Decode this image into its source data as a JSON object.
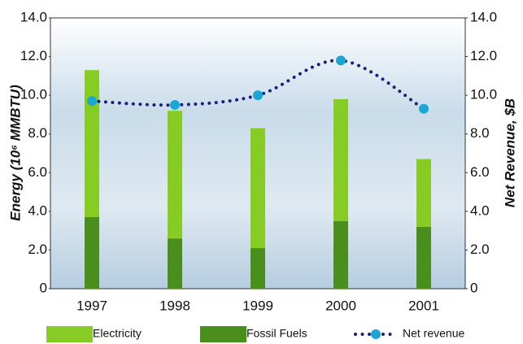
{
  "chart_data": {
    "type": "stacked-bar-line",
    "y_label": "Energy (10⁶ MMBTU)",
    "y2_label": "Net Revenue, $B",
    "categories": [
      "1997",
      "1998",
      "1999",
      "2000",
      "2001"
    ],
    "series": [
      {
        "name": "Fossil Fuels",
        "color": "#4a8f1e",
        "values": [
          3.7,
          2.6,
          2.1,
          3.5,
          3.2
        ]
      },
      {
        "name": "Electricity",
        "color": "#86cc25",
        "values": [
          7.6,
          6.6,
          6.2,
          6.3,
          3.5
        ]
      },
      {
        "name": "Net revenue",
        "color": "#1b1f7a",
        "marker_color": "#1aa6d6",
        "axis": "y2",
        "values": [
          9.7,
          9.5,
          10.0,
          11.8,
          9.3
        ]
      }
    ],
    "ylim": [
      0,
      14
    ],
    "yticks": [
      0,
      {
        "value": 2,
        "label": "2.0"
      },
      {
        "value": 4,
        "label": "4.0"
      },
      {
        "value": 6,
        "label": "6.0"
      },
      {
        "value": 8,
        "label": "8.0"
      },
      {
        "value": 10,
        "label": "10.0"
      },
      {
        "value": 12,
        "label": "12.0"
      },
      {
        "value": 14,
        "label": "14.0"
      }
    ],
    "y2lim": [
      0,
      14
    ],
    "y2ticks": [
      0,
      {
        "value": 2,
        "label": "2.0"
      },
      {
        "value": 4,
        "label": "4.0"
      },
      {
        "value": 6,
        "label": "6.0"
      },
      {
        "value": 8,
        "label": "8.0"
      },
      {
        "value": 10,
        "label": "10.0"
      },
      {
        "value": 12,
        "label": "12.0"
      },
      {
        "value": 14,
        "label": "14.0"
      }
    ]
  }
}
